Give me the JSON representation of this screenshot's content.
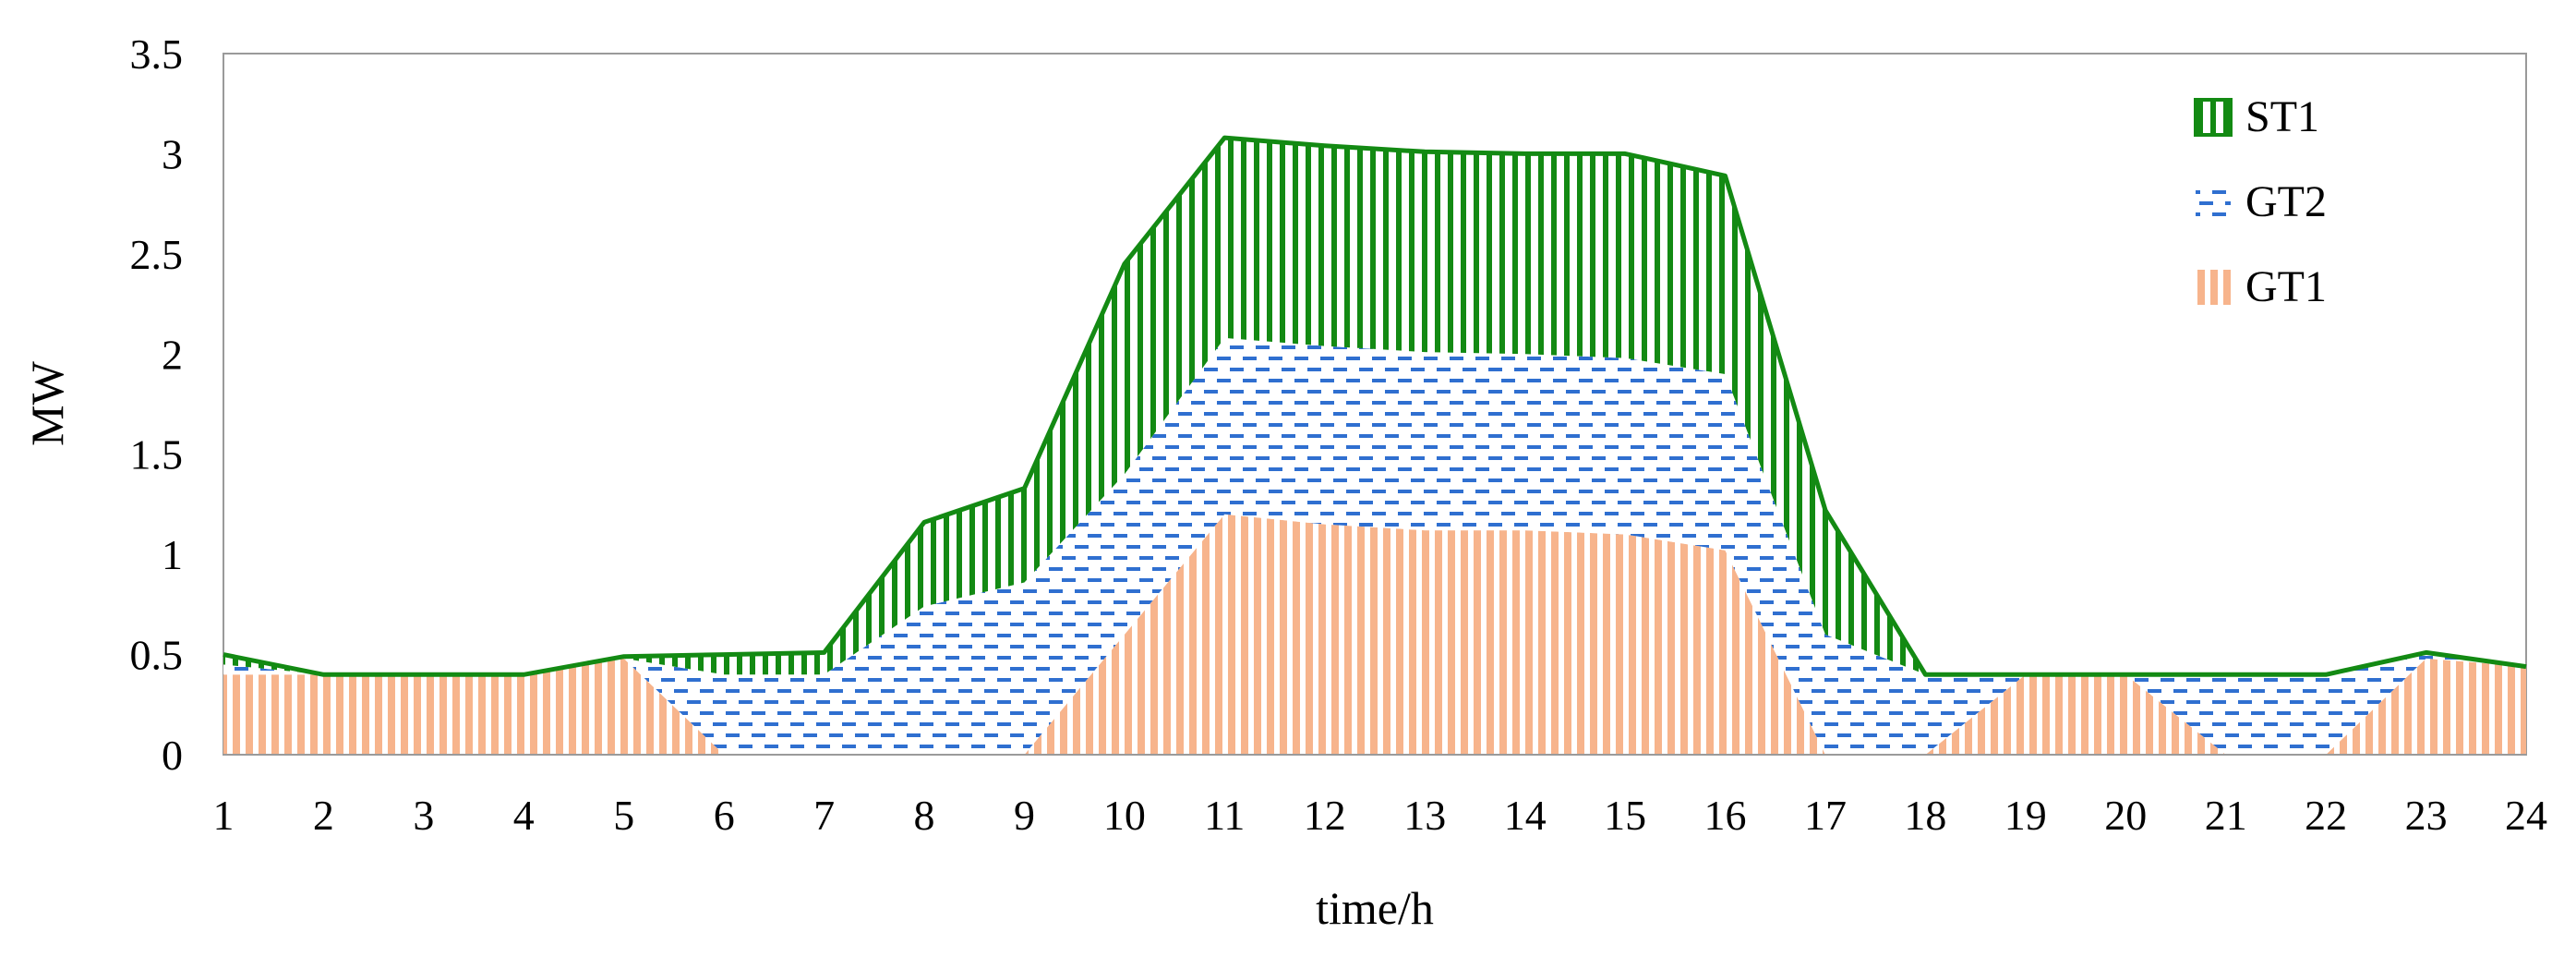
{
  "chart_data": {
    "type": "area",
    "stacked": true,
    "title": "",
    "xlabel": "time/h",
    "ylabel": "MW",
    "x": [
      1,
      2,
      3,
      4,
      5,
      6,
      7,
      8,
      9,
      10,
      11,
      12,
      13,
      14,
      15,
      16,
      17,
      18,
      19,
      20,
      21,
      22,
      23,
      24
    ],
    "xlim": [
      1,
      24
    ],
    "ylim": [
      0,
      3.5
    ],
    "xticks": [
      "1",
      "2",
      "3",
      "4",
      "5",
      "6",
      "7",
      "8",
      "9",
      "10",
      "11",
      "12",
      "13",
      "14",
      "15",
      "16",
      "17",
      "18",
      "19",
      "20",
      "21",
      "22",
      "23",
      "24"
    ],
    "yticks": [
      "0",
      "0.5",
      "1",
      "1.5",
      "2",
      "2.5",
      "3",
      "3.5"
    ],
    "grid": false,
    "legend_position": "top-right",
    "series": [
      {
        "name": "GT1",
        "fill": "#f7b48c",
        "pattern": "vertical-stripes",
        "values": [
          0.4,
          0.4,
          0.4,
          0.4,
          0.48,
          0,
          0,
          0,
          0,
          0.6,
          1.2,
          1.15,
          1.12,
          1.12,
          1.1,
          1.02,
          0,
          0,
          0.4,
          0.4,
          0,
          0,
          0.48,
          0.44
        ]
      },
      {
        "name": "GT2",
        "fill": "#2f6fd0",
        "pattern": "horizontal-dashes",
        "values": [
          0.05,
          0,
          0,
          0,
          0,
          0.4,
          0.4,
          0.74,
          0.86,
          0.8,
          0.88,
          0.89,
          0.89,
          0.88,
          0.88,
          0.88,
          0.6,
          0.4,
          0,
          0,
          0.4,
          0.4,
          0.02,
          0
        ]
      },
      {
        "name": "ST1",
        "fill": "#138a13",
        "pattern": "vertical-stripes",
        "values": [
          0.05,
          0,
          0,
          0,
          0.01,
          0.1,
          0.11,
          0.42,
          0.47,
          1.05,
          1.0,
          1.0,
          1.0,
          1.0,
          1.02,
          0.99,
          0.62,
          0,
          0,
          0,
          0,
          0,
          0.01,
          0
        ]
      }
    ],
    "legend": [
      {
        "name": "ST1",
        "color": "#138a13"
      },
      {
        "name": "GT2",
        "color": "#2f6fd0"
      },
      {
        "name": "GT1",
        "color": "#f7b48c"
      }
    ]
  }
}
